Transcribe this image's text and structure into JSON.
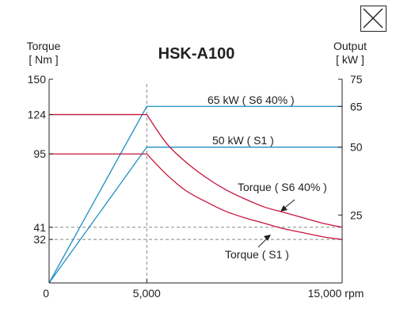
{
  "window": {
    "close_icon": "close-icon"
  },
  "chart_data": {
    "type": "line",
    "title": "HSK-A100",
    "ylabel_left": [
      "Torque",
      "[ Nm ]"
    ],
    "ylabel_right": [
      "Output",
      "[ kW ]"
    ],
    "x_unit": "rpm",
    "xlim": [
      0,
      15000
    ],
    "ylim_left": [
      0,
      150
    ],
    "ylim_right": [
      0,
      75
    ],
    "x_ticks": [
      {
        "value": 0,
        "label": "0"
      },
      {
        "value": 5000,
        "label": "5,000"
      },
      {
        "value": 15000,
        "label": "15,000 rpm"
      }
    ],
    "y_ticks_left": [
      {
        "value": 150,
        "label": "150"
      },
      {
        "value": 124,
        "label": "124"
      },
      {
        "value": 95,
        "label": "95"
      },
      {
        "value": 41,
        "label": "41"
      },
      {
        "value": 32,
        "label": "32"
      }
    ],
    "y_ticks_right": [
      {
        "value": 75,
        "label": "75"
      },
      {
        "value": 65,
        "label": "65"
      },
      {
        "value": 50,
        "label": "50"
      },
      {
        "value": 25,
        "label": "25"
      }
    ],
    "grid": false,
    "reference_lines": [
      {
        "axis": "left",
        "value": 41
      },
      {
        "axis": "left",
        "value": 32
      },
      {
        "axis": "x",
        "value": 5000
      }
    ],
    "series": [
      {
        "name": "65 kW ( S6 40% )",
        "axis": "right",
        "color": "#1f8fc4",
        "points": [
          [
            0,
            0
          ],
          [
            5000,
            65
          ],
          [
            15000,
            65
          ]
        ]
      },
      {
        "name": "50 kW ( S1 )",
        "axis": "right",
        "color": "#1f8fc4",
        "points": [
          [
            0,
            0
          ],
          [
            5000,
            50
          ],
          [
            15000,
            50
          ]
        ]
      },
      {
        "name": "Torque ( S6 40% )",
        "axis": "left",
        "color": "#c8143c",
        "points": [
          [
            0,
            124
          ],
          [
            5000,
            124
          ],
          [
            6000,
            103
          ],
          [
            7000,
            89
          ],
          [
            8000,
            78
          ],
          [
            9000,
            69
          ],
          [
            10000,
            62
          ],
          [
            11000,
            56
          ],
          [
            12000,
            52
          ],
          [
            13000,
            48
          ],
          [
            14000,
            44
          ],
          [
            15000,
            41
          ]
        ]
      },
      {
        "name": "Torque ( S1 )",
        "axis": "left",
        "color": "#c8143c",
        "points": [
          [
            0,
            95
          ],
          [
            5000,
            95
          ],
          [
            6000,
            80
          ],
          [
            7000,
            68
          ],
          [
            8000,
            60
          ],
          [
            9000,
            53
          ],
          [
            10000,
            48
          ],
          [
            11000,
            44
          ],
          [
            12000,
            40
          ],
          [
            13000,
            37
          ],
          [
            14000,
            34
          ],
          [
            15000,
            32
          ]
        ]
      }
    ]
  }
}
